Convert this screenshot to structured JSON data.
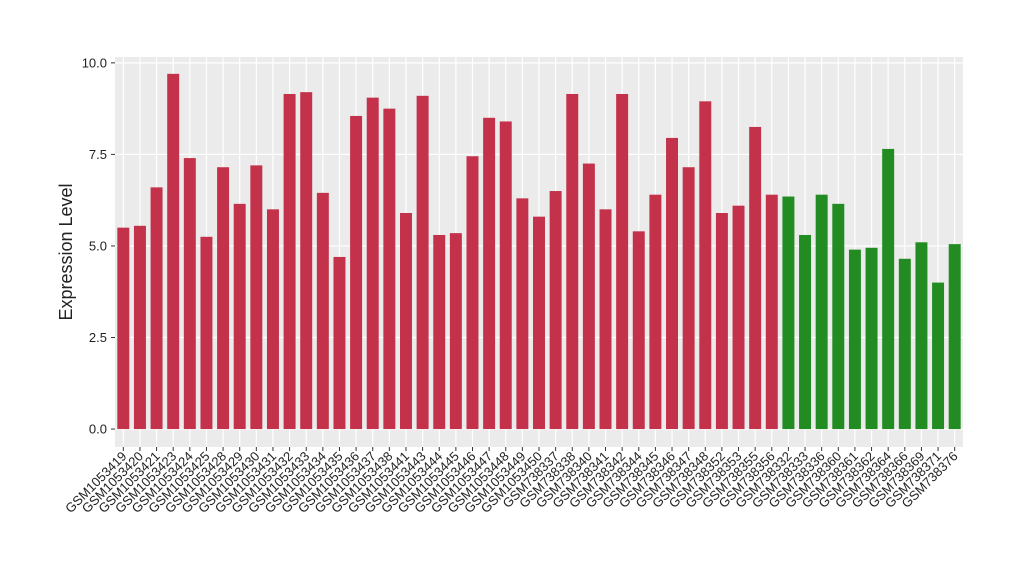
{
  "chart_data": {
    "type": "bar",
    "y_label": "Expression Level",
    "categories": [
      "GSM1053419",
      "GSM1053420",
      "GSM1053421",
      "GSM1053423",
      "GSM1053424",
      "GSM1053425",
      "GSM1053428",
      "GSM1053429",
      "GSM1053430",
      "GSM1053431",
      "GSM1053432",
      "GSM1053433",
      "GSM1053434",
      "GSM1053435",
      "GSM1053436",
      "GSM1053437",
      "GSM1053438",
      "GSM1053441",
      "GSM1053443",
      "GSM1053444",
      "GSM1053445",
      "GSM1053446",
      "GSM1053447",
      "GSM1053448",
      "GSM1053449",
      "GSM1053450",
      "GSM738337",
      "GSM738338",
      "GSM738340",
      "GSM738341",
      "GSM738342",
      "GSM738344",
      "GSM738345",
      "GSM738346",
      "GSM738347",
      "GSM738348",
      "GSM738352",
      "GSM738353",
      "GSM738355",
      "GSM738356",
      "GSM738332",
      "GSM738333",
      "GSM738336",
      "GSM738360",
      "GSM738361",
      "GSM738362",
      "GSM738364",
      "GSM738366",
      "GSM738369",
      "GSM738371",
      "GSM738376"
    ],
    "values": [
      5.5,
      5.55,
      6.6,
      9.7,
      7.4,
      5.25,
      7.15,
      6.15,
      7.2,
      6.0,
      9.15,
      9.2,
      6.45,
      4.7,
      8.55,
      9.05,
      8.75,
      5.9,
      9.1,
      5.3,
      5.35,
      7.45,
      8.5,
      8.4,
      6.3,
      5.8,
      6.5,
      9.15,
      7.25,
      6.0,
      9.15,
      5.4,
      6.4,
      7.95,
      7.15,
      8.95,
      5.9,
      6.1,
      8.25,
      6.4,
      6.35,
      5.3,
      6.4,
      6.15,
      4.9,
      4.95,
      7.65,
      4.65,
      5.1,
      4.0,
      5.05
    ],
    "colors": [
      "#c3324a",
      "#c3324a",
      "#c3324a",
      "#c3324a",
      "#c3324a",
      "#c3324a",
      "#c3324a",
      "#c3324a",
      "#c3324a",
      "#c3324a",
      "#c3324a",
      "#c3324a",
      "#c3324a",
      "#c3324a",
      "#c3324a",
      "#c3324a",
      "#c3324a",
      "#c3324a",
      "#c3324a",
      "#c3324a",
      "#c3324a",
      "#c3324a",
      "#c3324a",
      "#c3324a",
      "#c3324a",
      "#c3324a",
      "#c3324a",
      "#c3324a",
      "#c3324a",
      "#c3324a",
      "#c3324a",
      "#c3324a",
      "#c3324a",
      "#c3324a",
      "#c3324a",
      "#c3324a",
      "#c3324a",
      "#c3324a",
      "#c3324a",
      "#c3324a",
      "#228b22",
      "#228b22",
      "#228b22",
      "#228b22",
      "#228b22",
      "#228b22",
      "#228b22",
      "#228b22",
      "#228b22",
      "#228b22",
      "#228b22"
    ],
    "ylim": [
      -0.49,
      10.16
    ],
    "yticks": [
      {
        "value": 0,
        "label": "0.0"
      },
      2.5,
      {
        "value": 5,
        "label": "5.0"
      },
      7.5,
      {
        "value": 10,
        "label": "10.0"
      }
    ],
    "grid": true
  }
}
